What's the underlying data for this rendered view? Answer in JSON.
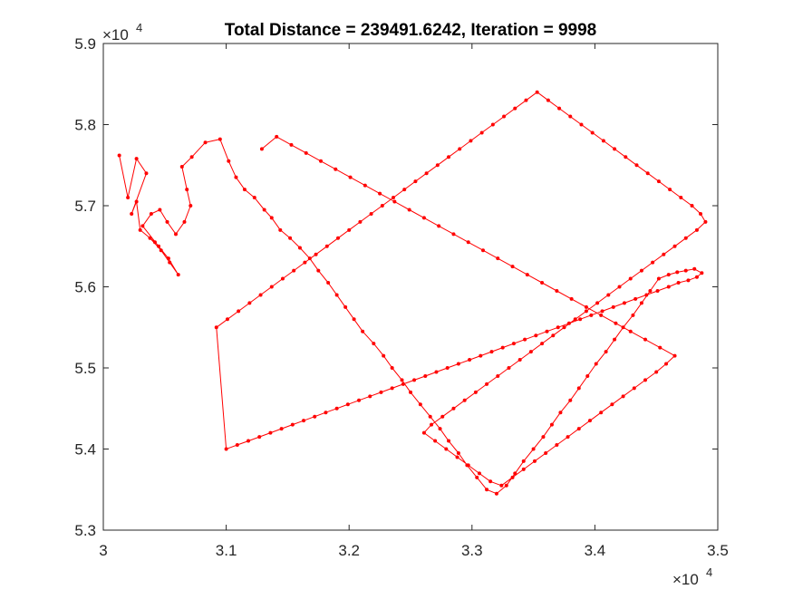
{
  "chart_data": {
    "type": "line",
    "title": "Total Distance = 239491.6242, Iteration = 9998",
    "xlabel": "",
    "ylabel": "",
    "xlim": [
      30000,
      35000
    ],
    "ylim": [
      53000,
      59000
    ],
    "x_ticks": [
      30000,
      31000,
      32000,
      33000,
      34000,
      35000
    ],
    "x_tick_labels": [
      "3",
      "3.1",
      "3.2",
      "3.3",
      "3.4",
      "3.5"
    ],
    "y_ticks": [
      53000,
      54000,
      55000,
      56000,
      57000,
      58000,
      59000
    ],
    "y_tick_labels": [
      "5.3",
      "5.4",
      "5.5",
      "5.6",
      "5.7",
      "5.8",
      "5.9"
    ],
    "x_exponent_label": "×10",
    "x_exponent_power": "4",
    "y_exponent_label": "×10",
    "y_exponent_power": "4",
    "grid": false,
    "marker": "dot",
    "series": [
      {
        "color": "#ff0000",
        "x": [
          30130,
          30200,
          30270,
          30350,
          30230,
          30270,
          30300,
          30420,
          30380,
          30470,
          30540,
          30610,
          30530,
          30450,
          30320,
          30390,
          30460,
          30520,
          30590,
          30660,
          30710,
          30680,
          30640,
          30720,
          30830,
          30950,
          31020,
          31080,
          31150,
          31230,
          31310,
          31370,
          31440,
          31520,
          31600,
          31680,
          31750,
          31830,
          31900,
          31970,
          32040,
          32110,
          32200,
          32280,
          32350,
          32430,
          32500,
          32580,
          32660,
          32740,
          32810,
          32890,
          32960,
          33040,
          33120,
          33200,
          33280,
          33350,
          33420,
          33500,
          33580,
          33650,
          33720,
          33800,
          33870,
          33940,
          34010,
          34090,
          34160,
          34230,
          34310,
          34380,
          34450,
          34520,
          34600,
          34670,
          34740,
          34810,
          34870,
          34830,
          34760,
          34680,
          34600,
          34510,
          34420,
          34330,
          34240,
          34150,
          34060,
          33970,
          33880,
          33790,
          33700,
          33610,
          33520,
          33430,
          33340,
          33250,
          33160,
          33070,
          32980,
          32890,
          32800,
          32710,
          32620,
          32530,
          32440,
          32350,
          32260,
          32170,
          32080,
          31990,
          31900,
          31810,
          31720,
          31630,
          31540,
          31450,
          31360,
          31270,
          31180,
          31090,
          31000,
          30920,
          31010,
          31100,
          31190,
          31280,
          31370,
          31460,
          31550,
          31640,
          31730,
          31820,
          31910,
          32000,
          32090,
          32180,
          32270,
          32360,
          32450,
          32540,
          32630,
          32720,
          32810,
          32900,
          32990,
          33080,
          33170,
          33260,
          33350,
          33440,
          33530,
          33620,
          33710,
          33800,
          33890,
          33980,
          34070,
          34160,
          34250,
          34340,
          34430,
          34520,
          34610,
          34700,
          34790,
          34860,
          34900,
          34830,
          34740,
          34650,
          34560,
          34470,
          34380,
          34290,
          34200,
          34110,
          34020,
          33930,
          33840,
          33750,
          33660,
          33570,
          33480,
          33390,
          33300,
          33210,
          33120,
          33030,
          32940,
          32850,
          32760,
          32670,
          32610,
          32700,
          32790,
          32880,
          32970,
          33060,
          33150,
          33240,
          33330,
          33420,
          33510,
          33600,
          33690,
          33780,
          33870,
          33960,
          34050,
          34140,
          34230,
          34320,
          34410,
          34500,
          34580,
          34650,
          34530,
          34410,
          34290,
          34170,
          34050,
          33930,
          33810,
          33690,
          33570,
          33450,
          33330,
          33210,
          33090,
          32970,
          32850,
          32730,
          32610,
          32490,
          32370,
          32250,
          32130,
          32010,
          31890,
          31770,
          31650,
          31530,
          31410,
          31290
        ],
        "y": [
          57620,
          57100,
          57580,
          57400,
          56900,
          57050,
          56700,
          56550,
          56600,
          56450,
          56300,
          56150,
          56350,
          56500,
          56750,
          56900,
          56950,
          56800,
          56650,
          56800,
          57000,
          57200,
          57480,
          57600,
          57780,
          57820,
          57550,
          57350,
          57200,
          57100,
          56950,
          56850,
          56700,
          56600,
          56480,
          56350,
          56200,
          56050,
          55900,
          55750,
          55600,
          55450,
          55300,
          55150,
          55000,
          54850,
          54700,
          54550,
          54400,
          54250,
          54100,
          53950,
          53800,
          53650,
          53500,
          53450,
          53550,
          53700,
          53850,
          54000,
          54150,
          54300,
          54450,
          54600,
          54750,
          54900,
          55050,
          55200,
          55350,
          55500,
          55650,
          55800,
          55950,
          56100,
          56150,
          56180,
          56200,
          56220,
          56170,
          56120,
          56080,
          56050,
          56000,
          55950,
          55900,
          55850,
          55800,
          55750,
          55700,
          55650,
          55600,
          55550,
          55500,
          55450,
          55400,
          55350,
          55300,
          55250,
          55200,
          55150,
          55100,
          55050,
          55000,
          54950,
          54900,
          54850,
          54800,
          54750,
          54700,
          54650,
          54600,
          54550,
          54500,
          54450,
          54400,
          54350,
          54300,
          54250,
          54200,
          54150,
          54100,
          54050,
          54000,
          55500,
          55600,
          55700,
          55800,
          55900,
          56000,
          56100,
          56200,
          56300,
          56400,
          56500,
          56600,
          56700,
          56800,
          56900,
          57000,
          57100,
          57200,
          57300,
          57400,
          57500,
          57600,
          57700,
          57800,
          57900,
          58000,
          58100,
          58200,
          58300,
          58400,
          58300,
          58200,
          58100,
          58000,
          57900,
          57800,
          57700,
          57600,
          57500,
          57400,
          57300,
          57200,
          57100,
          57000,
          56900,
          56800,
          56700,
          56600,
          56500,
          56400,
          56300,
          56200,
          56100,
          56000,
          55900,
          55800,
          55700,
          55600,
          55500,
          55400,
          55300,
          55200,
          55100,
          55000,
          54900,
          54800,
          54700,
          54600,
          54500,
          54400,
          54300,
          54200,
          54100,
          54000,
          53900,
          53800,
          53700,
          53600,
          53550,
          53650,
          53750,
          53850,
          53950,
          54050,
          54150,
          54250,
          54350,
          54450,
          54550,
          54650,
          54750,
          54850,
          54950,
          55050,
          55150,
          55250,
          55350,
          55450,
          55550,
          55650,
          55750,
          55850,
          55950,
          56050,
          56150,
          56250,
          56350,
          56450,
          56550,
          56650,
          56750,
          56850,
          56950,
          57050,
          57150,
          57250,
          57350,
          57450,
          57550,
          57650,
          57750,
          57850,
          57700
        ]
      }
    ]
  }
}
